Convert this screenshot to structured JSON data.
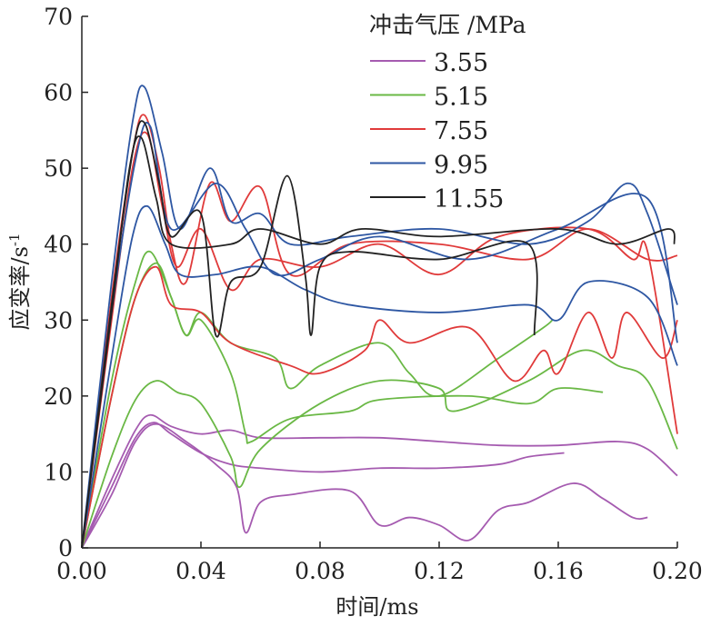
{
  "chart_data": {
    "type": "line",
    "title": "",
    "xlabel": "时间/ms",
    "ylabel": "应变率/s",
    "ylabel_sup": "-1",
    "xlim": [
      0,
      0.2
    ],
    "ylim": [
      0,
      70
    ],
    "xticks": [
      "0.00",
      "0.04",
      "0.08",
      "0.12",
      "0.16",
      "0.20"
    ],
    "xtick_values": [
      0,
      0.04,
      0.08,
      0.12,
      0.16,
      0.2
    ],
    "yticks": [
      "0",
      "10",
      "20",
      "30",
      "40",
      "50",
      "60",
      "70"
    ],
    "ytick_values": [
      0,
      10,
      20,
      30,
      40,
      50,
      60,
      70
    ],
    "grid": false,
    "legend": {
      "title": "冲击气压 /MPa",
      "placement": "top-right"
    },
    "series": [
      {
        "name": "3.55",
        "color": "#a55bb0",
        "curves": [
          [
            [
              0,
              0
            ],
            [
              0.01,
              9
            ],
            [
              0.018,
              15.5
            ],
            [
              0.023,
              17.5
            ],
            [
              0.03,
              16
            ],
            [
              0.04,
              15
            ],
            [
              0.05,
              15.5
            ],
            [
              0.06,
              14.5
            ],
            [
              0.08,
              14.5
            ],
            [
              0.1,
              14.5
            ],
            [
              0.12,
              14
            ],
            [
              0.14,
              13.5
            ],
            [
              0.16,
              13.5
            ],
            [
              0.18,
              14
            ],
            [
              0.19,
              13
            ],
            [
              0.2,
              9.5
            ]
          ],
          [
            [
              0,
              0
            ],
            [
              0.01,
              8
            ],
            [
              0.018,
              14.5
            ],
            [
              0.024,
              16.5
            ],
            [
              0.03,
              15
            ],
            [
              0.04,
              12.5
            ],
            [
              0.05,
              11
            ],
            [
              0.06,
              10.5
            ],
            [
              0.08,
              10
            ],
            [
              0.1,
              10.5
            ],
            [
              0.12,
              10.5
            ],
            [
              0.14,
              11
            ],
            [
              0.15,
              12
            ],
            [
              0.162,
              12.5
            ]
          ],
          [
            [
              0,
              0
            ],
            [
              0.01,
              7
            ],
            [
              0.018,
              14
            ],
            [
              0.025,
              16.3
            ],
            [
              0.035,
              14
            ],
            [
              0.045,
              11
            ],
            [
              0.052,
              8
            ],
            [
              0.055,
              2
            ],
            [
              0.06,
              6
            ],
            [
              0.07,
              7
            ],
            [
              0.09,
              7.5
            ],
            [
              0.1,
              3
            ],
            [
              0.11,
              4
            ],
            [
              0.12,
              3
            ],
            [
              0.13,
              1
            ],
            [
              0.14,
              5
            ],
            [
              0.15,
              6
            ],
            [
              0.165,
              8.5
            ],
            [
              0.175,
              6.5
            ],
            [
              0.185,
              4
            ],
            [
              0.19,
              4
            ]
          ]
        ]
      },
      {
        "name": "5.15",
        "color": "#6ab845",
        "curves": [
          [
            [
              0,
              0
            ],
            [
              0.01,
              22
            ],
            [
              0.018,
              35
            ],
            [
              0.023,
              39
            ],
            [
              0.03,
              33
            ],
            [
              0.035,
              28
            ],
            [
              0.04,
              31
            ],
            [
              0.05,
              27
            ],
            [
              0.065,
              25
            ],
            [
              0.07,
              21
            ],
            [
              0.08,
              24
            ],
            [
              0.1,
              27
            ],
            [
              0.11,
              23
            ],
            [
              0.12,
              20
            ],
            [
              0.14,
              25
            ],
            [
              0.155,
              29
            ],
            [
              0.158,
              30
            ]
          ],
          [
            [
              0,
              0
            ],
            [
              0.01,
              20
            ],
            [
              0.018,
              33
            ],
            [
              0.025,
              37.5
            ],
            [
              0.03,
              33
            ],
            [
              0.035,
              28
            ],
            [
              0.04,
              30
            ],
            [
              0.05,
              23
            ],
            [
              0.055,
              15
            ],
            [
              0.057,
              14
            ],
            [
              0.07,
              17
            ],
            [
              0.09,
              18
            ],
            [
              0.1,
              19.5
            ],
            [
              0.13,
              20
            ],
            [
              0.15,
              19
            ],
            [
              0.16,
              21
            ],
            [
              0.175,
              20.5
            ]
          ],
          [
            [
              0,
              0
            ],
            [
              0.01,
              12
            ],
            [
              0.018,
              19.5
            ],
            [
              0.025,
              22
            ],
            [
              0.032,
              20.5
            ],
            [
              0.04,
              19
            ],
            [
              0.05,
              12
            ],
            [
              0.053,
              8
            ],
            [
              0.06,
              13
            ],
            [
              0.08,
              19
            ],
            [
              0.1,
              22
            ],
            [
              0.12,
              21
            ],
            [
              0.125,
              18
            ],
            [
              0.15,
              22
            ],
            [
              0.168,
              26
            ],
            [
              0.18,
              24
            ],
            [
              0.19,
              22
            ],
            [
              0.2,
              13
            ]
          ]
        ]
      },
      {
        "name": "7.55",
        "color": "#e03a3a",
        "curves": [
          [
            [
              0,
              0
            ],
            [
              0.01,
              33
            ],
            [
              0.017,
              52
            ],
            [
              0.021,
              57
            ],
            [
              0.026,
              50
            ],
            [
              0.03,
              40
            ],
            [
              0.035,
              35
            ],
            [
              0.043,
              48
            ],
            [
              0.05,
              43
            ],
            [
              0.06,
              47.5
            ],
            [
              0.07,
              36
            ],
            [
              0.09,
              40
            ],
            [
              0.12,
              40
            ],
            [
              0.15,
              38
            ],
            [
              0.17,
              42
            ],
            [
              0.19,
              38
            ],
            [
              0.2,
              38.5
            ]
          ],
          [
            [
              0,
              0
            ],
            [
              0.01,
              30
            ],
            [
              0.017,
              50
            ],
            [
              0.022,
              54.5
            ],
            [
              0.027,
              45
            ],
            [
              0.032,
              37
            ],
            [
              0.04,
              42
            ],
            [
              0.05,
              34
            ],
            [
              0.06,
              38
            ],
            [
              0.08,
              37
            ],
            [
              0.1,
              40
            ],
            [
              0.12,
              36
            ],
            [
              0.14,
              41
            ],
            [
              0.17,
              42
            ],
            [
              0.185,
              38
            ],
            [
              0.19,
              39
            ],
            [
              0.2,
              15
            ]
          ],
          [
            [
              0,
              0
            ],
            [
              0.01,
              20
            ],
            [
              0.018,
              33
            ],
            [
              0.025,
              37
            ],
            [
              0.03,
              32
            ],
            [
              0.04,
              31
            ],
            [
              0.05,
              27
            ],
            [
              0.07,
              24
            ],
            [
              0.08,
              23
            ],
            [
              0.095,
              26
            ],
            [
              0.1,
              30
            ],
            [
              0.11,
              27
            ],
            [
              0.13,
              29
            ],
            [
              0.145,
              22
            ],
            [
              0.155,
              26
            ],
            [
              0.16,
              23
            ],
            [
              0.17,
              31
            ],
            [
              0.178,
              25
            ],
            [
              0.183,
              31
            ],
            [
              0.195,
              25
            ],
            [
              0.2,
              30
            ]
          ]
        ]
      },
      {
        "name": "9.95",
        "color": "#2e57a3",
        "curves": [
          [
            [
              0,
              0
            ],
            [
              0.01,
              35
            ],
            [
              0.017,
              56
            ],
            [
              0.021,
              60.7
            ],
            [
              0.027,
              52
            ],
            [
              0.033,
              42
            ],
            [
              0.043,
              50
            ],
            [
              0.05,
              43
            ],
            [
              0.06,
              44
            ],
            [
              0.07,
              40
            ],
            [
              0.09,
              41
            ],
            [
              0.12,
              42
            ],
            [
              0.15,
              40
            ],
            [
              0.17,
              43
            ],
            [
              0.183,
              48
            ],
            [
              0.19,
              44
            ],
            [
              0.2,
              32
            ]
          ],
          [
            [
              0,
              0
            ],
            [
              0.01,
              31
            ],
            [
              0.018,
              51
            ],
            [
              0.023,
              55.5
            ],
            [
              0.03,
              42
            ],
            [
              0.045,
              48
            ],
            [
              0.055,
              42
            ],
            [
              0.065,
              36
            ],
            [
              0.08,
              38
            ],
            [
              0.1,
              41
            ],
            [
              0.13,
              38
            ],
            [
              0.16,
              42
            ],
            [
              0.19,
              46
            ],
            [
              0.2,
              27
            ]
          ],
          [
            [
              0,
              0
            ],
            [
              0.01,
              25
            ],
            [
              0.017,
              41
            ],
            [
              0.022,
              45
            ],
            [
              0.028,
              40
            ],
            [
              0.033,
              36
            ],
            [
              0.045,
              36
            ],
            [
              0.06,
              37
            ],
            [
              0.075,
              34
            ],
            [
              0.09,
              32
            ],
            [
              0.12,
              31
            ],
            [
              0.15,
              32
            ],
            [
              0.16,
              30
            ],
            [
              0.17,
              35
            ],
            [
              0.19,
              33
            ],
            [
              0.2,
              24
            ]
          ]
        ]
      },
      {
        "name": "11.55",
        "color": "#222222",
        "curves": [
          [
            [
              0,
              0
            ],
            [
              0.01,
              32
            ],
            [
              0.017,
              52
            ],
            [
              0.021,
              56
            ],
            [
              0.026,
              48
            ],
            [
              0.03,
              41
            ],
            [
              0.04,
              44
            ],
            [
              0.045,
              28
            ],
            [
              0.05,
              35
            ],
            [
              0.06,
              37
            ],
            [
              0.069,
              49
            ],
            [
              0.075,
              36
            ],
            [
              0.077,
              28
            ],
            [
              0.08,
              37
            ],
            [
              0.09,
              39
            ],
            [
              0.12,
              38
            ],
            [
              0.15,
              40
            ],
            [
              0.152,
              28
            ]
          ],
          [
            [
              0,
              0
            ],
            [
              0.01,
              31
            ],
            [
              0.016,
              50
            ],
            [
              0.02,
              54
            ],
            [
              0.025,
              46
            ],
            [
              0.03,
              40
            ],
            [
              0.05,
              40
            ],
            [
              0.06,
              42
            ],
            [
              0.08,
              40
            ],
            [
              0.094,
              42
            ],
            [
              0.12,
              41
            ],
            [
              0.16,
              42
            ],
            [
              0.18,
              40
            ],
            [
              0.197,
              42
            ],
            [
              0.199,
              40
            ]
          ]
        ]
      }
    ]
  }
}
